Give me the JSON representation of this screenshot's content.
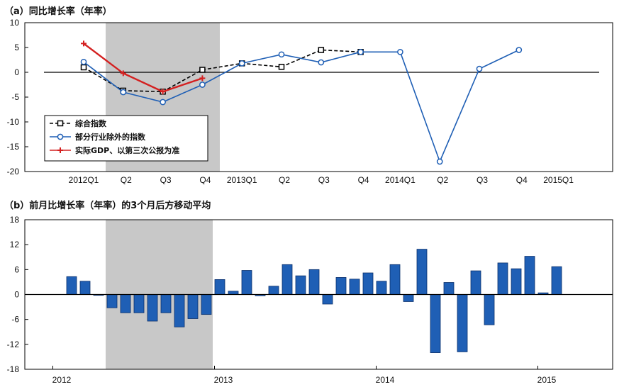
{
  "chart_data": [
    {
      "type": "line",
      "title": "（a）同比增长率（年率）",
      "categories": [
        "2012Q1",
        "Q2",
        "Q3",
        "Q4",
        "2013Q1",
        "Q2",
        "Q3",
        "Q4",
        "2014Q1",
        "Q2",
        "Q3",
        "Q4",
        "2015Q1"
      ],
      "ylim": [
        -20,
        10
      ],
      "yticks": [
        10,
        5,
        0,
        -5,
        -10,
        -15,
        -20
      ],
      "shaded_range": [
        "Q2 2012",
        "Q4 2012"
      ],
      "legend_position": "bottom-left",
      "series": [
        {
          "name": "综合指数",
          "style": "dashed",
          "marker": "square",
          "color": "#000000",
          "values": [
            1.0,
            -3.7,
            -3.9,
            0.5,
            1.8,
            1.1,
            4.5,
            4.1,
            null,
            null,
            null,
            null,
            null
          ]
        },
        {
          "name": "部分行业除外的指数",
          "style": "solid",
          "marker": "circle",
          "color": "#1f5fb5",
          "values": [
            2.1,
            -4.0,
            -6.0,
            -2.5,
            1.8,
            3.6,
            2.0,
            4.1,
            4.1,
            -18.0,
            0.7,
            4.5,
            null
          ]
        },
        {
          "name": "实际GDP、以第三次公报为准",
          "style": "solid",
          "marker": "plus",
          "color": "#d42020",
          "values": [
            5.8,
            -0.2,
            -3.9,
            -1.2,
            null,
            null,
            null,
            null,
            null,
            null,
            null,
            null,
            null
          ]
        }
      ]
    },
    {
      "type": "bar",
      "title": "（b）前月比增长率（年率）的3个月后方移动平均",
      "color": "#1f5fb5",
      "ylim": [
        -18,
        18
      ],
      "yticks": [
        18,
        12,
        6,
        0,
        -6,
        -12,
        -18
      ],
      "xlabels": [
        "2012",
        "2013",
        "2014",
        "2015"
      ],
      "shaded_range": [
        "2012-04",
        "2012-11"
      ],
      "months": [
        "2012-02",
        "2012-03",
        "2012-04",
        "2012-05",
        "2012-06",
        "2012-07",
        "2012-08",
        "2012-09",
        "2012-10",
        "2012-11",
        "2012-12",
        "2013-01",
        "2013-02",
        "2013-03",
        "2013-04",
        "2013-05",
        "2013-06",
        "2013-07",
        "2013-08",
        "2013-09",
        "2013-10",
        "2013-11",
        "2013-12",
        "2014-01",
        "2014-02",
        "2014-03",
        "2014-04",
        "2014-05",
        "2014-06",
        "2014-07",
        "2014-08",
        "2014-09",
        "2014-10",
        "2014-11",
        "2014-12",
        "2015-01",
        "2015-02"
      ],
      "values": [
        4.3,
        3.2,
        -0.2,
        -3.2,
        -4.4,
        -4.4,
        -6.4,
        -4.4,
        -7.8,
        -5.8,
        -4.8,
        3.6,
        0.8,
        5.8,
        -0.3,
        2.0,
        7.2,
        4.5,
        6.0,
        -2.3,
        4.1,
        3.7,
        5.2,
        3.2,
        7.2,
        -1.7,
        10.9,
        -14.0,
        2.9,
        -13.8,
        5.7,
        -7.3,
        7.6,
        6.2,
        9.2,
        0.4,
        6.7
      ]
    }
  ]
}
